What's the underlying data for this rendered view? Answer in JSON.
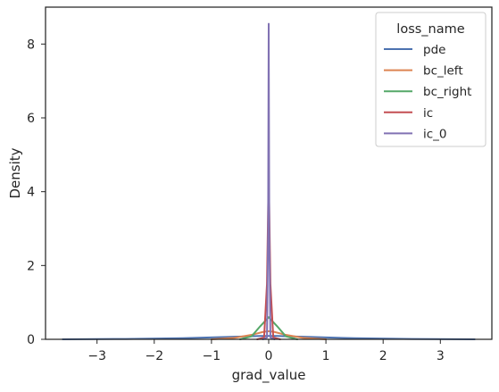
{
  "chart_data": {
    "type": "line",
    "xlabel": "grad_value",
    "ylabel": "Density",
    "xlim": [
      -3.9,
      3.9
    ],
    "ylim": [
      0,
      9.0
    ],
    "xticks": [
      -3,
      -2,
      -1,
      0,
      1,
      2,
      3
    ],
    "yticks": [
      0,
      2,
      4,
      6,
      8
    ],
    "xtick_labels": [
      "−3",
      "−2",
      "−1",
      "0",
      "1",
      "2",
      "3"
    ],
    "ytick_labels": [
      "0",
      "2",
      "4",
      "6",
      "8"
    ],
    "grid": false,
    "legend": {
      "title": "loss_name",
      "placement": "top-right"
    },
    "series": [
      {
        "name": "pde",
        "color": "#4c72b0",
        "x": [
          -3.6,
          -2.5,
          -1.5,
          -0.8,
          -0.4,
          -0.15,
          0,
          0.15,
          0.4,
          0.8,
          1.5,
          2.5,
          3.6
        ],
        "y": [
          0.0,
          0.01,
          0.03,
          0.06,
          0.08,
          0.09,
          0.09,
          0.09,
          0.08,
          0.06,
          0.03,
          0.01,
          0.0
        ]
      },
      {
        "name": "bc_left",
        "color": "#dd8452",
        "x": [
          -1.0,
          -0.6,
          -0.3,
          -0.1,
          0,
          0.1,
          0.3,
          0.6,
          1.0
        ],
        "y": [
          0.0,
          0.04,
          0.12,
          0.2,
          0.22,
          0.2,
          0.12,
          0.04,
          0.0
        ]
      },
      {
        "name": "bc_right",
        "color": "#55a868",
        "x": [
          -0.5,
          -0.3,
          -0.15,
          0,
          0.15,
          0.3,
          0.5
        ],
        "y": [
          0.0,
          0.08,
          0.35,
          0.6,
          0.35,
          0.08,
          0.0
        ]
      },
      {
        "name": "ic",
        "color": "#c44e52",
        "x": [
          -0.2,
          -0.08,
          -0.03,
          0,
          0.03,
          0.08,
          0.2
        ],
        "y": [
          0.0,
          0.05,
          1.5,
          4.5,
          1.5,
          0.05,
          0.0
        ]
      },
      {
        "name": "ic_0",
        "color": "#8172b3",
        "x": [
          -0.1,
          -0.03,
          -0.01,
          0,
          0.01,
          0.03,
          0.1
        ],
        "y": [
          0.0,
          0.05,
          3.0,
          8.55,
          3.0,
          0.05,
          0.0
        ]
      }
    ]
  }
}
